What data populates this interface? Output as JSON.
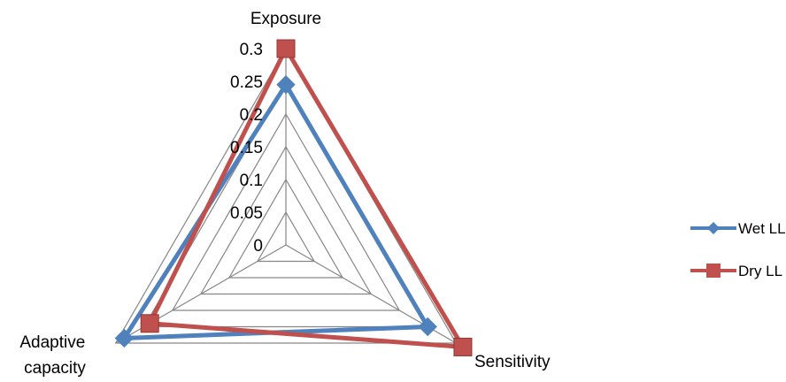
{
  "chart_data": {
    "type": "radar",
    "axes": [
      "Exposure",
      "Sensitivity",
      "Adaptive\ncapacity"
    ],
    "tick_labels": [
      "0",
      "0.05",
      "0.1",
      "0.15",
      "0.2",
      "0.25",
      "0.3"
    ],
    "rlim": [
      0,
      0.3
    ],
    "grid": true,
    "legend_position": "right",
    "series": [
      {
        "name": "Wet LL",
        "values": [
          0.245,
          0.25,
          0.285
        ],
        "color": "#4F81BD",
        "marker": "diamond"
      },
      {
        "name": "Dry LL",
        "values": [
          0.3,
          0.312,
          0.24
        ],
        "color": "#C0504D",
        "marker": "square"
      }
    ]
  }
}
